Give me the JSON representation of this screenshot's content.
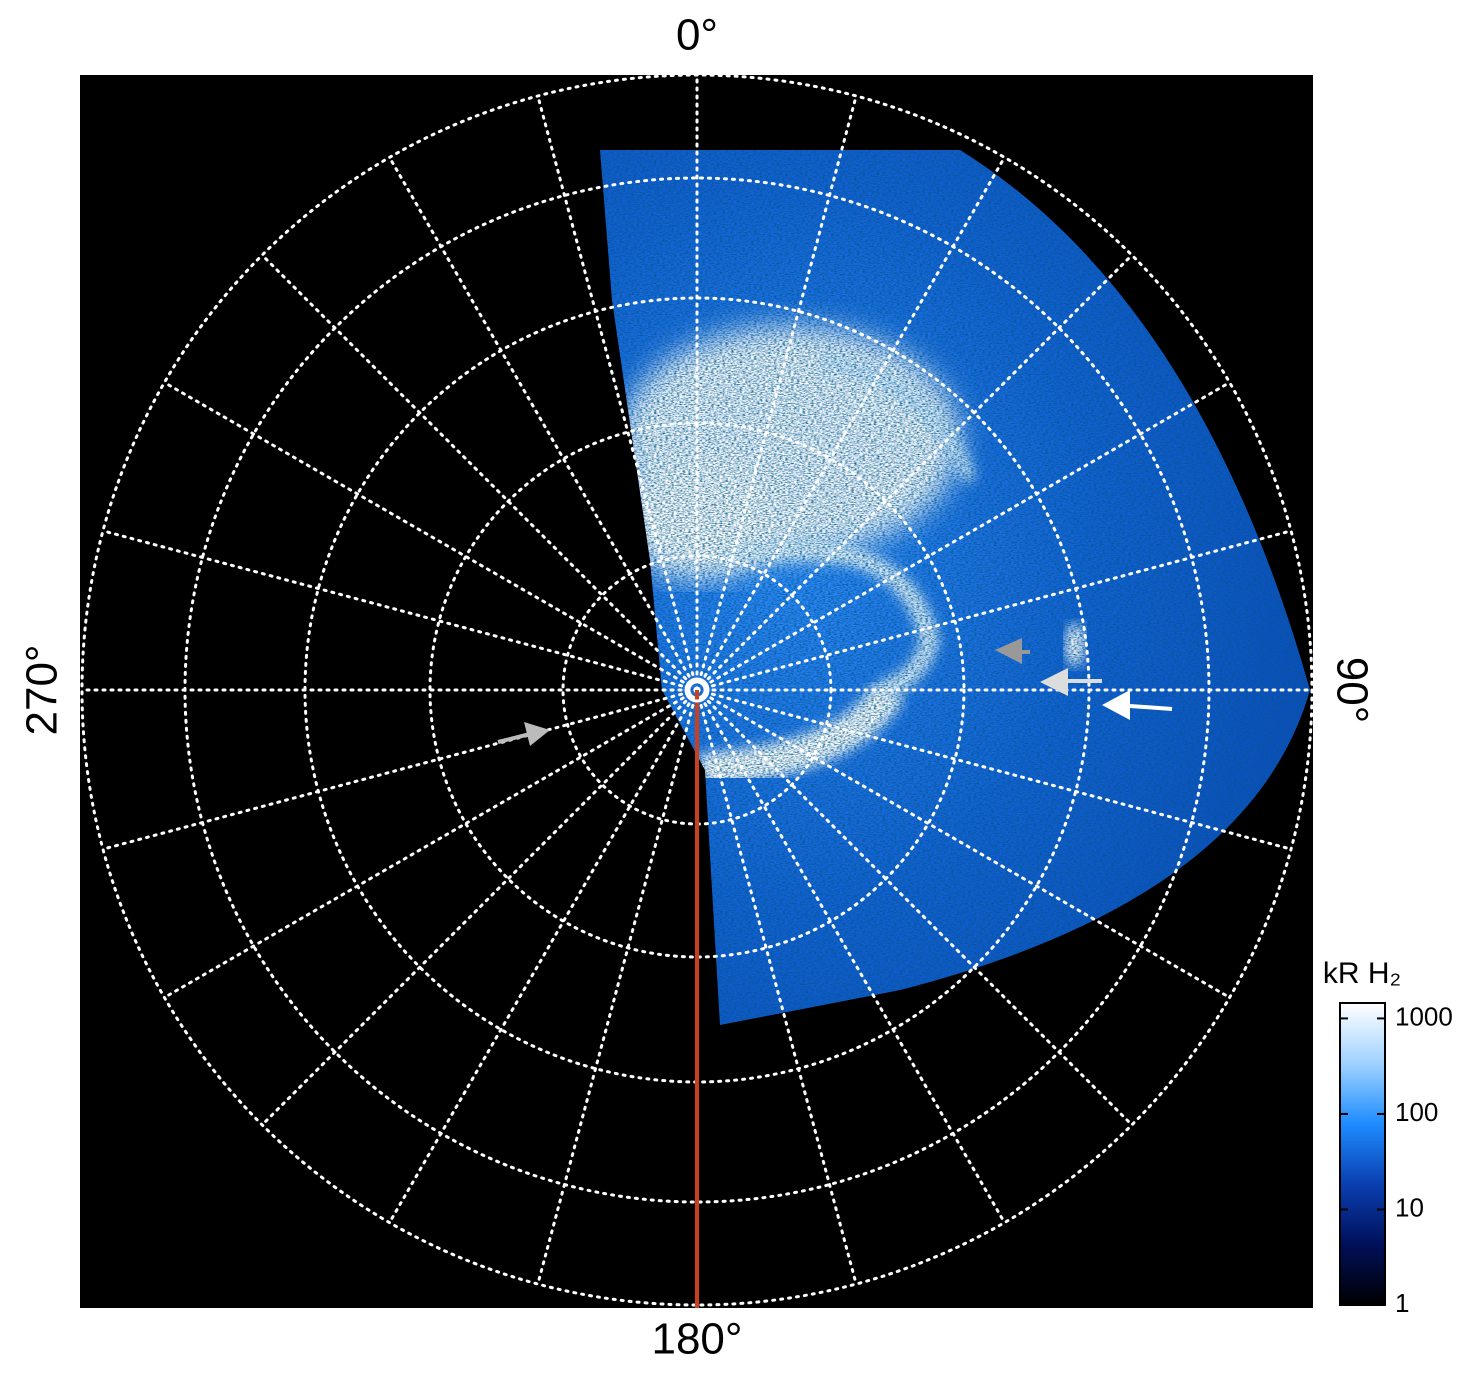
{
  "chart_data": {
    "type": "polar-image",
    "angle_ticks": [
      {
        "value": 0,
        "label": "0°"
      },
      {
        "value": 90,
        "label": "90°"
      },
      {
        "value": 180,
        "label": "180°"
      },
      {
        "value": 270,
        "label": "270°"
      }
    ],
    "grid": true,
    "colorbar": {
      "label": "kR H₂",
      "scale": "log",
      "lim": [
        1,
        1450
      ],
      "ticks": [
        1,
        10,
        100,
        1000
      ],
      "colors": [
        "#000000",
        "#00105a",
        "#0a3fb0",
        "#1e8cff",
        "#9fd2ff",
        "#ffffff"
      ]
    }
  }
}
